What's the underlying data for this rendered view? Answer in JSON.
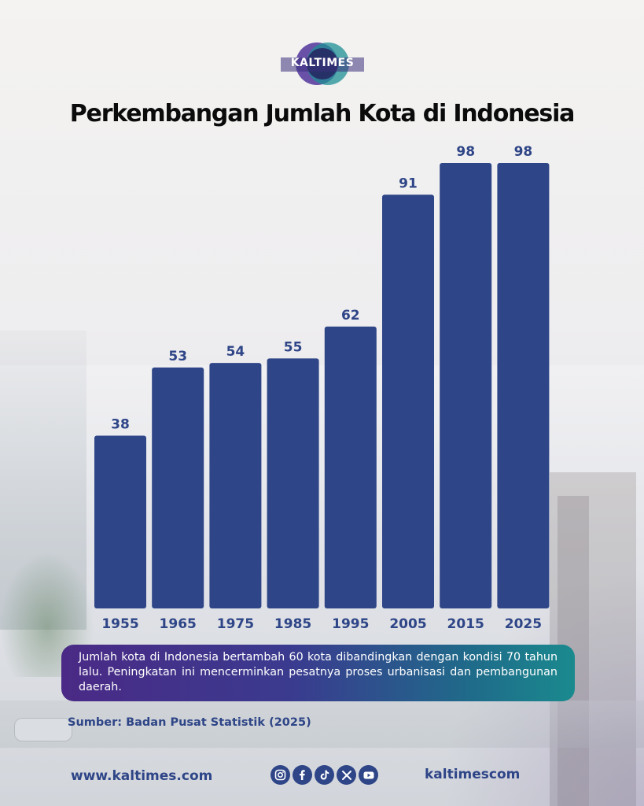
{
  "brand": {
    "logo_text": "KALTIMES",
    "website": "www.kaltimes.com",
    "social_handle": "kaltimescom",
    "social_icons": [
      "instagram-icon",
      "facebook-icon",
      "tiktok-icon",
      "x-icon",
      "youtube-icon"
    ]
  },
  "chart_data": {
    "type": "bar",
    "title": "Perkembangan Jumlah Kota di Indonesia",
    "categories": [
      "1955",
      "1965",
      "1975",
      "1985",
      "1995",
      "2005",
      "2015",
      "2025"
    ],
    "values": [
      38,
      53,
      54,
      55,
      62,
      91,
      98,
      98
    ],
    "value_labels": [
      "38",
      "53",
      "54",
      "55",
      "62",
      "91",
      "98",
      "98"
    ],
    "xlabel": "",
    "ylabel": "",
    "ylim": [
      0,
      100
    ],
    "grid": false,
    "bar_color": "#2e4587"
  },
  "summary": "Jumlah kota di Indonesia bertambah 60 kota dibandingkan dengan kondisi 70 tahun lalu. Peningkatan ini mencerminkan pesatnya proses urbanisasi dan pembangunan daerah.",
  "source": "Sumber: Badan Pusat Statistik (2025)"
}
